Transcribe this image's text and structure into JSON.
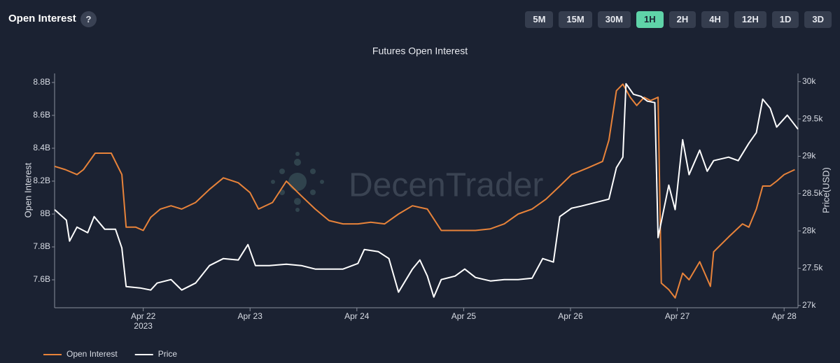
{
  "header": {
    "title": "Open Interest",
    "help": "?",
    "timeframes": [
      "5M",
      "15M",
      "30M",
      "1H",
      "2H",
      "4H",
      "12H",
      "1D",
      "3D"
    ],
    "active": "1H"
  },
  "chart_data": {
    "type": "line",
    "title": "Futures Open Interest",
    "watermark": "DecenTrader",
    "y_label": "Open Interest",
    "y2_label": "Price(USD)",
    "x_year_label": "2023",
    "xlim": [
      21.17,
      28.13
    ],
    "xticks": [
      {
        "value": 22,
        "label": "Apr 22"
      },
      {
        "value": 23,
        "label": "Apr 23"
      },
      {
        "value": 24,
        "label": "Apr 24"
      },
      {
        "value": 25,
        "label": "Apr 25"
      },
      {
        "value": 26,
        "label": "Apr 26"
      },
      {
        "value": 27,
        "label": "Apr 27"
      },
      {
        "value": 28,
        "label": "Apr 28"
      }
    ],
    "ylim": [
      7.43,
      8.855
    ],
    "yticks": [
      {
        "value": 7.6,
        "label": "7.6B"
      },
      {
        "value": 7.8,
        "label": "7.8B"
      },
      {
        "value": 8,
        "label": "8B"
      },
      {
        "value": 8.2,
        "label": "8.2B"
      },
      {
        "value": 8.4,
        "label": "8.4B"
      },
      {
        "value": 8.6,
        "label": "8.6B"
      },
      {
        "value": 8.8,
        "label": "8.8B"
      }
    ],
    "y2lim": [
      26970,
      30110
    ],
    "y2ticks": [
      {
        "value": 27000,
        "label": "27k"
      },
      {
        "value": 27500,
        "label": "27.5k"
      },
      {
        "value": 28000,
        "label": "28k"
      },
      {
        "value": 28500,
        "label": "28.5k"
      },
      {
        "value": 29000,
        "label": "29k"
      },
      {
        "value": 29500,
        "label": "29.5k"
      },
      {
        "value": 30000,
        "label": "30k"
      }
    ],
    "grid": false,
    "legend": "bottom-left",
    "series": [
      {
        "name": "Open Interest",
        "color": "#e8833a",
        "axis": "y",
        "x": [
          21.17,
          21.27,
          21.38,
          21.44,
          21.55,
          21.7,
          21.8,
          21.84,
          21.93,
          22.0,
          22.07,
          22.16,
          22.26,
          22.36,
          22.49,
          22.62,
          22.75,
          22.89,
          23.0,
          23.08,
          23.21,
          23.34,
          23.48,
          23.61,
          23.74,
          23.87,
          24.01,
          24.13,
          24.26,
          24.39,
          24.52,
          24.66,
          24.79,
          24.92,
          25.01,
          25.11,
          25.25,
          25.38,
          25.51,
          25.64,
          25.77,
          25.9,
          26.01,
          26.16,
          26.3,
          26.36,
          26.43,
          26.49,
          26.56,
          26.62,
          26.69,
          26.75,
          26.82,
          26.85,
          26.92,
          26.98,
          27.05,
          27.11,
          27.21,
          27.31,
          27.34,
          27.48,
          27.61,
          27.67,
          27.74,
          27.8,
          27.87,
          27.93,
          28.0,
          28.1
        ],
        "values": [
          8.29,
          8.27,
          8.24,
          8.27,
          8.37,
          8.37,
          8.24,
          7.92,
          7.92,
          7.9,
          7.98,
          8.03,
          8.05,
          8.03,
          8.07,
          8.15,
          8.22,
          8.19,
          8.13,
          8.03,
          8.07,
          8.2,
          8.11,
          8.03,
          7.96,
          7.94,
          7.94,
          7.95,
          7.94,
          8.0,
          8.05,
          8.03,
          7.9,
          7.9,
          7.9,
          7.9,
          7.91,
          7.94,
          8.0,
          8.03,
          8.09,
          8.17,
          8.24,
          8.28,
          8.32,
          8.45,
          8.75,
          8.79,
          8.71,
          8.66,
          8.71,
          8.69,
          8.71,
          7.58,
          7.54,
          7.49,
          7.64,
          7.6,
          7.71,
          7.56,
          7.77,
          7.86,
          7.94,
          7.92,
          8.03,
          8.17,
          8.17,
          8.2,
          8.24,
          8.27
        ]
      },
      {
        "name": "Price",
        "color": "#ffffff",
        "axis": "y2",
        "x": [
          21.17,
          21.28,
          21.31,
          21.38,
          21.48,
          21.54,
          21.64,
          21.74,
          21.8,
          21.84,
          21.97,
          22.07,
          22.13,
          22.26,
          22.36,
          22.49,
          22.62,
          22.75,
          22.89,
          22.98,
          23.05,
          23.18,
          23.34,
          23.48,
          23.61,
          23.74,
          23.87,
          24.01,
          24.07,
          24.2,
          24.3,
          24.39,
          24.52,
          24.59,
          24.66,
          24.72,
          24.79,
          24.92,
          25.01,
          25.11,
          25.25,
          25.38,
          25.51,
          25.64,
          25.74,
          25.84,
          25.9,
          26.01,
          26.1,
          26.23,
          26.36,
          26.43,
          26.49,
          26.52,
          26.59,
          26.66,
          26.72,
          26.79,
          26.82,
          26.92,
          26.98,
          27.05,
          27.11,
          27.21,
          27.28,
          27.34,
          27.48,
          27.57,
          27.67,
          27.74,
          27.8,
          27.87,
          27.93,
          28.03,
          28.13
        ],
        "values": [
          28285,
          28144,
          27863,
          28051,
          27976,
          28191,
          28022,
          28022,
          27770,
          27254,
          27235,
          27207,
          27301,
          27348,
          27207,
          27301,
          27535,
          27629,
          27610,
          27816,
          27535,
          27535,
          27554,
          27535,
          27488,
          27488,
          27488,
          27563,
          27751,
          27723,
          27629,
          27179,
          27488,
          27610,
          27395,
          27113,
          27348,
          27395,
          27488,
          27376,
          27329,
          27348,
          27348,
          27366,
          27629,
          27582,
          28191,
          28304,
          28332,
          28379,
          28426,
          28847,
          28988,
          29972,
          29831,
          29803,
          29738,
          29719,
          27910,
          28613,
          28285,
          29222,
          28754,
          29082,
          28800,
          28941,
          28988,
          28941,
          29175,
          29316,
          29766,
          29644,
          29391,
          29550,
          29363
        ]
      }
    ]
  }
}
